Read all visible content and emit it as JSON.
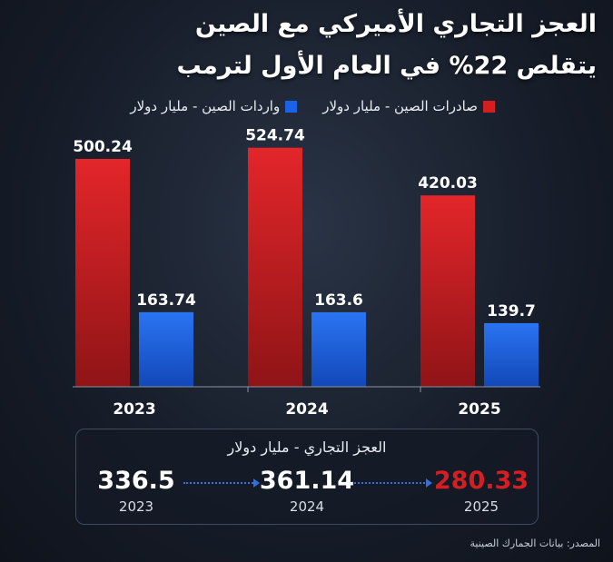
{
  "title": {
    "line1": "العجز التجاري الأميركي مع الصين",
    "line2": "يتقلص 22% في العام الأول لترمب"
  },
  "legend": {
    "exports_label": "صادرات الصين - مليار دولار",
    "imports_label": "واردات الصين - مليار دولار"
  },
  "colors": {
    "exports": "#d31f22",
    "imports": "#1a63e6",
    "deficit_highlight": "#d31f22"
  },
  "chart_data": {
    "type": "bar",
    "categories": [
      "2023",
      "2024",
      "2025"
    ],
    "series": [
      {
        "name": "صادرات الصين - مليار دولار",
        "values": [
          500.24,
          524.74,
          420.03
        ],
        "labels": [
          "500.24",
          "524.74",
          "420.03"
        ]
      },
      {
        "name": "واردات الصين - مليار دولار",
        "values": [
          163.74,
          163.6,
          139.7
        ],
        "labels": [
          "163.74",
          "163.6",
          "139.7"
        ]
      }
    ],
    "ylim": [
      0,
      560
    ],
    "legend": "top",
    "grid": false
  },
  "deficit_panel": {
    "title": "العجز التجاري - مليار دولار",
    "items": [
      {
        "value": "336.5",
        "year": "2023"
      },
      {
        "value": "361.14",
        "year": "2024"
      },
      {
        "value": "280.33",
        "year": "2025"
      }
    ]
  },
  "source": "المصدر: بيانات الجمارك الصينية"
}
